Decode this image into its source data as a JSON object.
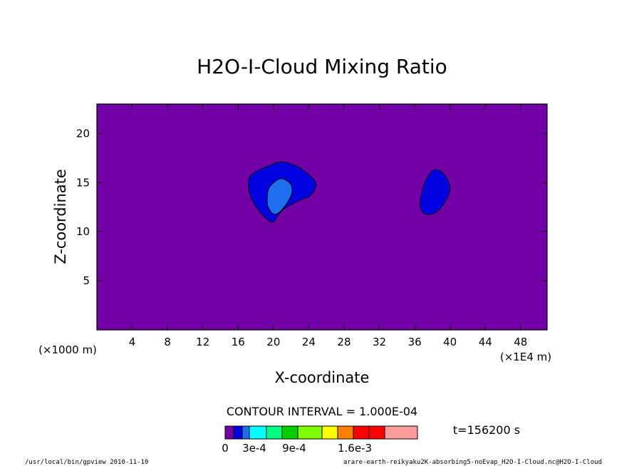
{
  "chart_data": {
    "type": "contour",
    "title": "H2O-I-Cloud Mixing Ratio",
    "xlabel": "X-coordinate",
    "ylabel": "Z-coordinate",
    "x_unit_left": "(×1000 m)",
    "x_unit_right": "(×1E4 m)",
    "xlim": [
      0,
      51
    ],
    "ylim": [
      0,
      23
    ],
    "x_ticks": [
      4,
      8,
      12,
      16,
      20,
      24,
      28,
      32,
      36,
      40,
      44,
      48
    ],
    "y_ticks": [
      5,
      10,
      15,
      20
    ],
    "background_level_color": "#7300a6",
    "contour_interval": "CONTOUR INTERVAL = 1.000E-04",
    "time_label": "t=156200 s",
    "colorbar": {
      "colors": [
        "#7300a6",
        "#0000e0",
        "#1f6ef0",
        "#00ffff",
        "#00ff80",
        "#00d000",
        "#80ff00",
        "#ffff00",
        "#ff8000",
        "#ff0000",
        "#ff0000",
        "#ff9c9c"
      ],
      "labels": [
        "0",
        "3e-4",
        "9e-4",
        "1.6e-3"
      ],
      "label_segment_index": [
        0,
        2,
        6,
        12
      ]
    },
    "features": [
      {
        "name": "cloud-outer-left",
        "level_color": "#0000e0",
        "points": [
          [
            17.5,
            15.8
          ],
          [
            19.5,
            16.7
          ],
          [
            21.0,
            17.1
          ],
          [
            23.0,
            16.5
          ],
          [
            24.8,
            15.0
          ],
          [
            24.2,
            13.7
          ],
          [
            23.0,
            13.2
          ],
          [
            21.0,
            12.2
          ],
          [
            20.0,
            11.0
          ],
          [
            19.0,
            11.5
          ],
          [
            17.7,
            13.0
          ],
          [
            17.2,
            14.5
          ]
        ]
      },
      {
        "name": "cloud-inner-left",
        "level_color": "#1f6ef0",
        "points": [
          [
            20.8,
            15.4
          ],
          [
            21.9,
            14.9
          ],
          [
            22.1,
            14.0
          ],
          [
            21.6,
            13.0
          ],
          [
            20.7,
            12.0
          ],
          [
            20.0,
            11.8
          ],
          [
            19.4,
            12.5
          ],
          [
            19.3,
            13.6
          ],
          [
            19.6,
            14.6
          ]
        ]
      },
      {
        "name": "cloud-right",
        "level_color": "#0000e0",
        "points": [
          [
            38.2,
            16.3
          ],
          [
            39.3,
            15.9
          ],
          [
            40.0,
            14.5
          ],
          [
            39.6,
            13.3
          ],
          [
            38.5,
            12.0
          ],
          [
            37.2,
            11.8
          ],
          [
            36.6,
            12.6
          ],
          [
            36.8,
            14.0
          ],
          [
            37.4,
            15.5
          ]
        ]
      }
    ]
  },
  "footer": {
    "left": "/usr/local/bin/gpview  2010-11-10",
    "right": "arare-earth-reikyaku2K-absorbing5-noEvap_H2O-I-Cloud.nc@H2O-I-Cloud"
  }
}
